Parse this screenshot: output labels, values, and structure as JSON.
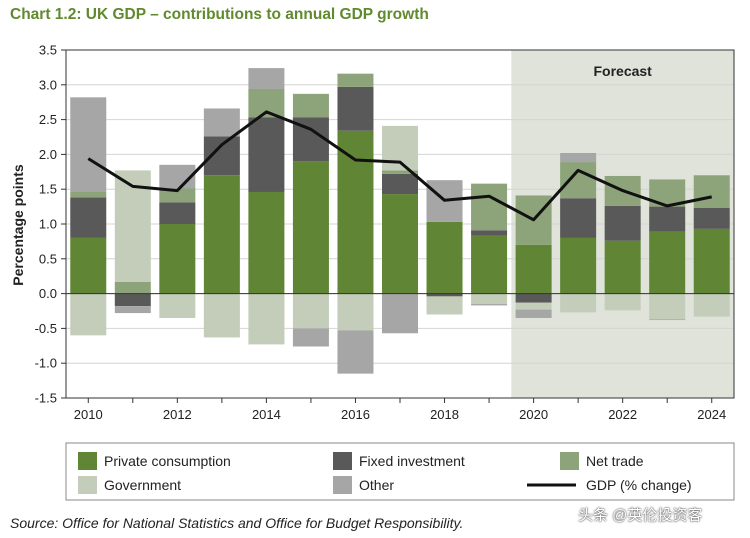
{
  "title": "Chart 1.2: UK GDP – contributions to annual GDP growth",
  "source": "Source: Office for National Statistics and Office for Budget Responsibility.",
  "watermark": "头条 @英伦投资客",
  "colors": {
    "private": "#5f8535",
    "fixed": "#595959",
    "net": "#8da37a",
    "government": "#c3cdb9",
    "other": "#a6a6a6",
    "gdp": "#111111",
    "forecast_bg": "#dfe3da",
    "title": "#5f8a2d"
  },
  "chart_data": {
    "type": "bar",
    "stacked": true,
    "title": "Chart 1.2: UK GDP – contributions to annual GDP growth",
    "ylabel": "Percentage points",
    "xlabel": "",
    "ylim": [
      -1.5,
      3.5
    ],
    "yticks": [
      "3.5",
      "3.0",
      "2.5",
      "2.0",
      "1.5",
      "1.0",
      "0.5",
      "0.0",
      "-0.5",
      "-1.0",
      "-1.5"
    ],
    "xtick_labels": [
      "2010",
      "2012",
      "2014",
      "2016",
      "2018",
      "2020",
      "2022",
      "2024"
    ],
    "categories": [
      "2010",
      "2011",
      "2012",
      "2013",
      "2014",
      "2015",
      "2016",
      "2017",
      "2018",
      "2019",
      "2020",
      "2021",
      "2022",
      "2023",
      "2024"
    ],
    "forecast_label": "Forecast",
    "forecast_start": "2020",
    "series": [
      {
        "key": "private",
        "name": "Private consumption",
        "values": [
          0.8,
          0.0,
          1.0,
          1.7,
          1.46,
          1.9,
          2.34,
          1.43,
          1.03,
          0.83,
          0.7,
          0.8,
          0.76,
          0.89,
          0.93
        ]
      },
      {
        "key": "fixed",
        "name": "Fixed investment",
        "values": [
          0.58,
          -0.18,
          0.31,
          0.56,
          1.07,
          0.63,
          0.63,
          0.29,
          -0.04,
          0.08,
          -0.13,
          0.57,
          0.5,
          0.36,
          0.3
        ]
      },
      {
        "key": "net",
        "name": "Net trade",
        "values": [
          0.08,
          0.17,
          0.2,
          0.0,
          0.41,
          0.34,
          0.19,
          0.05,
          0.0,
          0.67,
          0.71,
          0.52,
          0.43,
          0.39,
          0.47
        ]
      },
      {
        "key": "government",
        "name": "Government",
        "values": [
          -0.6,
          1.6,
          -0.35,
          -0.63,
          -0.73,
          -0.5,
          -0.53,
          0.64,
          -0.26,
          -0.15,
          -0.1,
          -0.27,
          -0.24,
          -0.37,
          -0.33
        ]
      },
      {
        "key": "other",
        "name": "Other",
        "values": [
          1.36,
          -0.1,
          0.34,
          0.4,
          0.3,
          -0.26,
          -0.62,
          -0.57,
          0.6,
          -0.02,
          -0.12,
          0.13,
          0.0,
          -0.01,
          0.0
        ]
      }
    ],
    "line": {
      "name": "GDP (% change)",
      "values": [
        1.94,
        1.54,
        1.48,
        2.14,
        2.61,
        2.36,
        1.92,
        1.89,
        1.34,
        1.4,
        1.06,
        1.77,
        1.48,
        1.26,
        1.39
      ]
    },
    "legend": [
      {
        "key": "private",
        "label": "Private consumption",
        "kind": "box"
      },
      {
        "key": "fixed",
        "label": "Fixed investment",
        "kind": "box"
      },
      {
        "key": "net",
        "label": "Net trade",
        "kind": "box"
      },
      {
        "key": "government",
        "label": "Government",
        "kind": "box"
      },
      {
        "key": "other",
        "label": "Other",
        "kind": "box"
      },
      {
        "key": "gdp",
        "label": "GDP (% change)",
        "kind": "line"
      }
    ],
    "legend_position": "bottom"
  }
}
